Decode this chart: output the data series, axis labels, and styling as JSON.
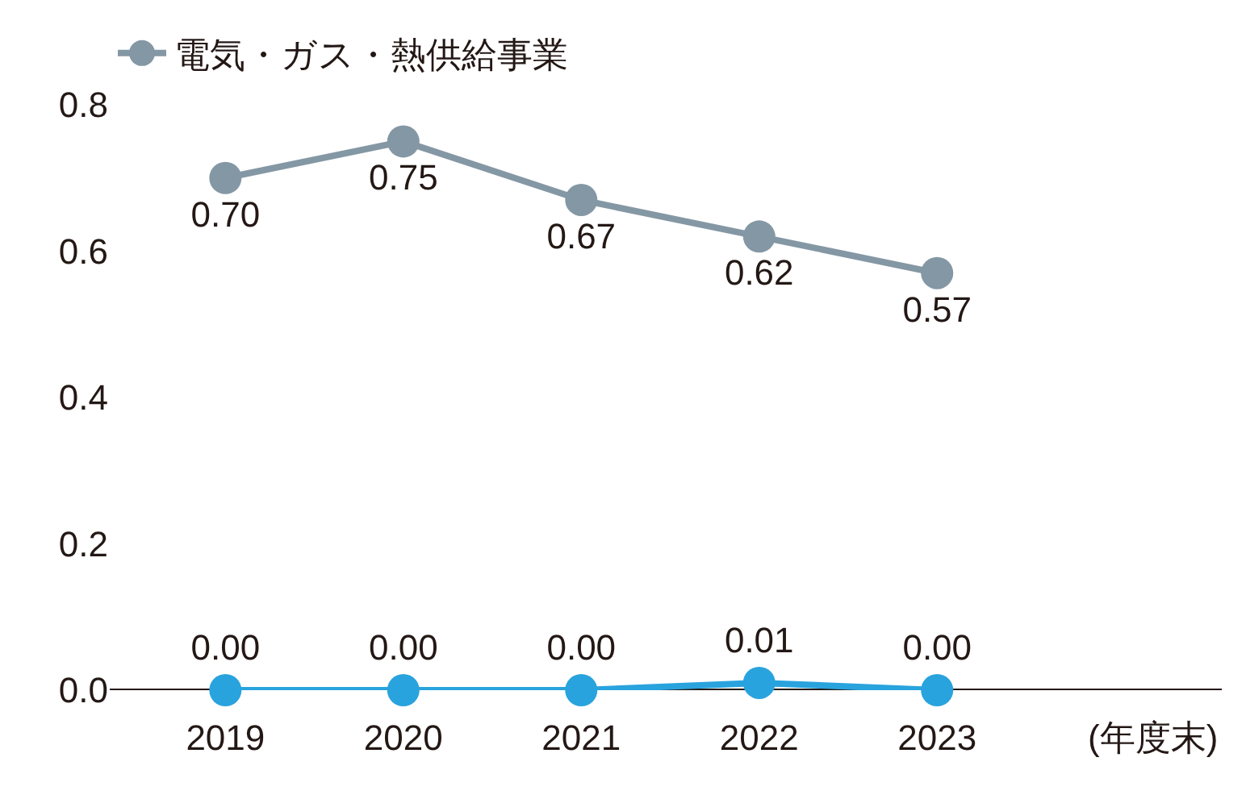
{
  "chart_data": {
    "type": "line",
    "xlabel": "(年度末)",
    "categories": [
      "2019",
      "2020",
      "2021",
      "2022",
      "2023"
    ],
    "series": [
      {
        "color": "#29a3dd",
        "values": [
          0.0,
          0.0,
          0.0,
          0.01,
          0.0
        ],
        "value_labels": [
          "0.00",
          "0.00",
          "0.00",
          "0.01",
          "0.00"
        ]
      },
      {
        "name": "電気・ガス・熱供給事業",
        "color": "#8497a4",
        "values": [
          0.7,
          0.75,
          0.67,
          0.62,
          0.57
        ],
        "value_labels": [
          "0.70",
          "0.75",
          "0.67",
          "0.62",
          "0.57"
        ]
      }
    ],
    "ylim": [
      0,
      0.8
    ],
    "yticks": [
      {
        "value": 0,
        "label": "0.0"
      },
      0.2,
      0.4,
      0.6,
      0.8
    ],
    "legend": "top left",
    "marker": "circle",
    "line_style": "solid"
  }
}
